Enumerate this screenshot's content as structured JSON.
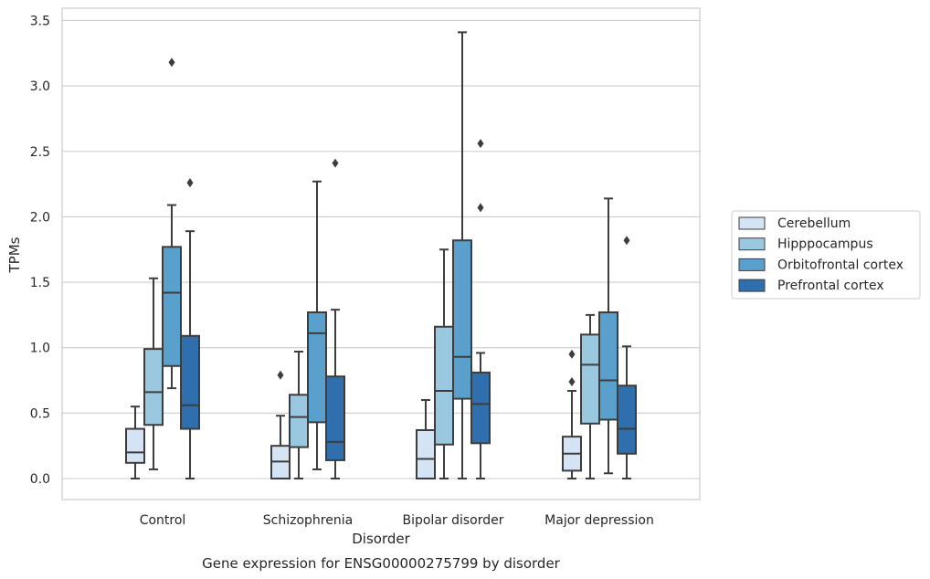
{
  "chart_data": {
    "type": "box",
    "title": "Gene expression for ENSG00000275799 by disorder",
    "xlabel": "Disorder",
    "ylabel": "TPMs",
    "ylim": [
      -0.17,
      3.58
    ],
    "yticks": [
      "0.0",
      "0.5",
      "1.0",
      "1.5",
      "2.0",
      "2.5",
      "3.0",
      "3.5"
    ],
    "grid": true,
    "legend_position": "right",
    "categories": [
      "Control",
      "Schizophrenia",
      "Bipolar disorder",
      "Major depression"
    ],
    "series": [
      {
        "name": "Cerebellum",
        "color": "#d4e4f4",
        "boxes": [
          {
            "min": 0.0,
            "q1": 0.12,
            "median": 0.2,
            "q3": 0.38,
            "max": 0.55,
            "outliers": []
          },
          {
            "min": 0.0,
            "q1": 0.0,
            "median": 0.13,
            "q3": 0.25,
            "max": 0.48,
            "outliers": [
              0.79
            ]
          },
          {
            "min": 0.0,
            "q1": 0.0,
            "median": 0.15,
            "q3": 0.37,
            "max": 0.6,
            "outliers": []
          },
          {
            "min": 0.0,
            "q1": 0.06,
            "median": 0.19,
            "q3": 0.32,
            "max": 0.67,
            "outliers": [
              0.74,
              0.95
            ]
          }
        ]
      },
      {
        "name": "Hipppocampus",
        "color": "#9ac8e0",
        "boxes": [
          {
            "min": 0.07,
            "q1": 0.41,
            "median": 0.66,
            "q3": 0.99,
            "max": 1.53,
            "outliers": []
          },
          {
            "min": 0.0,
            "q1": 0.24,
            "median": 0.47,
            "q3": 0.64,
            "max": 0.97,
            "outliers": []
          },
          {
            "min": 0.0,
            "q1": 0.26,
            "median": 0.67,
            "q3": 1.16,
            "max": 1.75,
            "outliers": []
          },
          {
            "min": 0.0,
            "q1": 0.42,
            "median": 0.87,
            "q3": 1.1,
            "max": 1.25,
            "outliers": []
          }
        ]
      },
      {
        "name": "Orbitofrontal cortex",
        "color": "#5aa0cc",
        "boxes": [
          {
            "min": 0.69,
            "q1": 0.86,
            "median": 1.42,
            "q3": 1.77,
            "max": 2.09,
            "outliers": [
              3.18
            ]
          },
          {
            "min": 0.07,
            "q1": 0.43,
            "median": 1.11,
            "q3": 1.27,
            "max": 2.27,
            "outliers": []
          },
          {
            "min": 0.0,
            "q1": 0.61,
            "median": 0.93,
            "q3": 1.82,
            "max": 3.41,
            "outliers": []
          },
          {
            "min": 0.04,
            "q1": 0.45,
            "median": 0.75,
            "q3": 1.27,
            "max": 2.14,
            "outliers": []
          }
        ]
      },
      {
        "name": "Prefrontal cortex",
        "color": "#2f6fae",
        "boxes": [
          {
            "min": 0.0,
            "q1": 0.38,
            "median": 0.56,
            "q3": 1.09,
            "max": 1.89,
            "outliers": [
              2.26
            ]
          },
          {
            "min": 0.0,
            "q1": 0.14,
            "median": 0.28,
            "q3": 0.78,
            "max": 1.29,
            "outliers": [
              2.41
            ]
          },
          {
            "min": 0.0,
            "q1": 0.27,
            "median": 0.57,
            "q3": 0.81,
            "max": 0.96,
            "outliers": [
              2.07,
              2.56
            ]
          },
          {
            "min": 0.0,
            "q1": 0.19,
            "median": 0.38,
            "q3": 0.71,
            "max": 1.01,
            "outliers": [
              1.82
            ]
          }
        ]
      }
    ]
  }
}
